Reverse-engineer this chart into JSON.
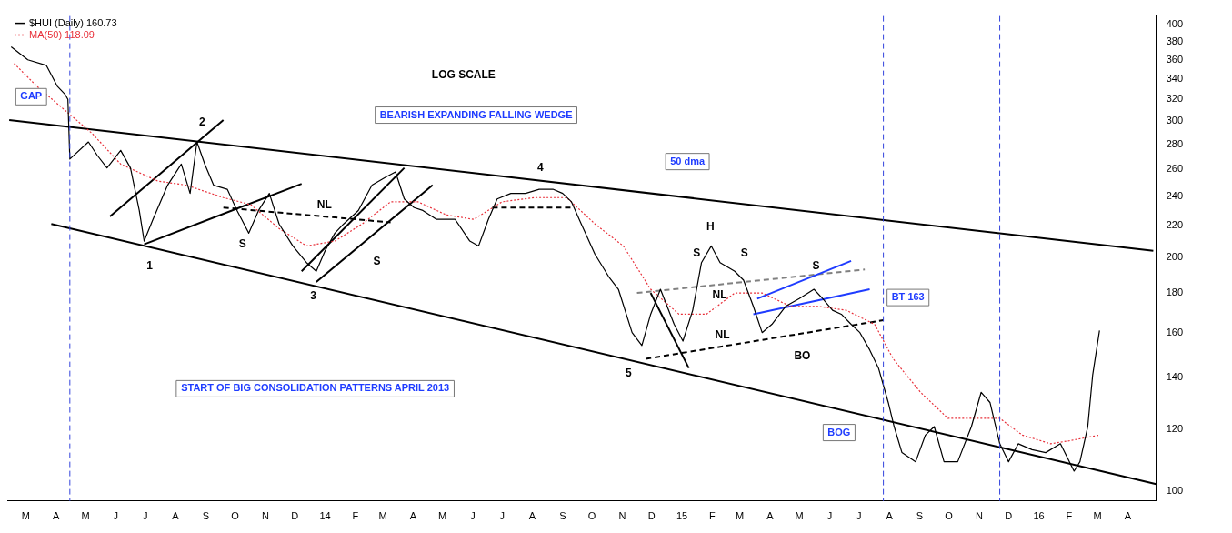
{
  "chart_data": {
    "type": "line",
    "subtitle": "LOG SCALE",
    "log": "y",
    "grid": false,
    "legend": "top left",
    "xlim": [
      "2013-02-10",
      "2016-04-30"
    ],
    "ylim": [
      97,
      410
    ],
    "yticks": [
      100,
      120,
      140,
      160,
      180,
      200,
      220,
      240,
      260,
      280,
      300,
      320,
      340,
      360,
      380,
      400
    ],
    "xticks": [
      {
        "value": "2013-03",
        "label": "M"
      },
      {
        "value": "2013-04",
        "label": "A"
      },
      {
        "value": "2013-05",
        "label": "M"
      },
      {
        "value": "2013-06",
        "label": "J"
      },
      {
        "value": "2013-07",
        "label": "J"
      },
      {
        "value": "2013-08",
        "label": "A"
      },
      {
        "value": "2013-09",
        "label": "S"
      },
      {
        "value": "2013-10",
        "label": "O"
      },
      {
        "value": "2013-11",
        "label": "N"
      },
      {
        "value": "2013-12",
        "label": "D"
      },
      {
        "value": "2014-01",
        "label": "14"
      },
      {
        "value": "2014-02",
        "label": "F"
      },
      {
        "value": "2014-03",
        "label": "M"
      },
      {
        "value": "2014-04",
        "label": "A"
      },
      {
        "value": "2014-05",
        "label": "M"
      },
      {
        "value": "2014-06",
        "label": "J"
      },
      {
        "value": "2014-07",
        "label": "J"
      },
      {
        "value": "2014-08",
        "label": "A"
      },
      {
        "value": "2014-09",
        "label": "S"
      },
      {
        "value": "2014-10",
        "label": "O"
      },
      {
        "value": "2014-11",
        "label": "N"
      },
      {
        "value": "2014-12",
        "label": "D"
      },
      {
        "value": "2015-01",
        "label": "15"
      },
      {
        "value": "2015-02",
        "label": "F"
      },
      {
        "value": "2015-03",
        "label": "M"
      },
      {
        "value": "2015-04",
        "label": "A"
      },
      {
        "value": "2015-05",
        "label": "M"
      },
      {
        "value": "2015-06",
        "label": "J"
      },
      {
        "value": "2015-07",
        "label": "J"
      },
      {
        "value": "2015-08",
        "label": "A"
      },
      {
        "value": "2015-09",
        "label": "S"
      },
      {
        "value": "2015-10",
        "label": "O"
      },
      {
        "value": "2015-11",
        "label": "N"
      },
      {
        "value": "2015-12",
        "label": "D"
      },
      {
        "value": "2016-01",
        "label": "16"
      },
      {
        "value": "2016-02",
        "label": "F"
      },
      {
        "value": "2016-03",
        "label": "M"
      },
      {
        "value": "2016-04",
        "label": "A"
      }
    ],
    "series": [
      {
        "name": "$HUI (Daily) 160.73",
        "color": "#000000",
        "x": [
          "2013-02-14",
          "2013-03-03",
          "2013-03-22",
          "2013-04-02",
          "2013-04-10",
          "2013-04-13",
          "2013-04-15",
          "2013-05-04",
          "2013-05-13",
          "2013-05-23",
          "2013-06-06",
          "2013-06-16",
          "2013-06-25",
          "2013-06-30",
          "2013-07-09",
          "2013-07-24",
          "2013-08-07",
          "2013-08-16",
          "2013-08-23",
          "2013-08-31",
          "2013-09-09",
          "2013-09-23",
          "2013-10-03",
          "2013-10-15",
          "2013-10-25",
          "2013-11-05",
          "2013-11-15",
          "2013-11-29",
          "2013-12-13",
          "2013-12-23",
          "2014-01-01",
          "2014-01-11",
          "2014-01-20",
          "2014-02-04",
          "2014-02-18",
          "2014-03-04",
          "2014-03-14",
          "2014-03-23",
          "2014-04-02",
          "2014-04-11",
          "2014-04-25",
          "2014-05-14",
          "2014-05-29",
          "2014-06-07",
          "2014-06-17",
          "2014-06-26",
          "2014-07-10",
          "2014-07-25",
          "2014-08-08",
          "2014-08-22",
          "2014-09-01",
          "2014-09-10",
          "2014-09-20",
          "2014-10-04",
          "2014-10-18",
          "2014-10-28",
          "2014-11-11",
          "2014-11-21",
          "2014-11-30",
          "2014-12-10",
          "2014-12-24",
          "2015-01-02",
          "2015-01-12",
          "2015-01-21",
          "2015-01-31",
          "2015-02-09",
          "2015-02-24",
          "2015-03-05",
          "2015-03-15",
          "2015-03-24",
          "2015-04-03",
          "2015-04-17",
          "2015-05-01",
          "2015-05-16",
          "2015-05-25",
          "2015-06-04",
          "2015-06-13",
          "2015-06-23",
          "2015-07-02",
          "2015-07-12",
          "2015-07-21",
          "2015-07-31",
          "2015-08-06",
          "2015-08-14",
          "2015-08-28",
          "2015-09-07",
          "2015-09-16",
          "2015-09-26",
          "2015-10-10",
          "2015-10-24",
          "2015-11-03",
          "2015-11-12",
          "2015-11-22",
          "2015-12-01",
          "2015-12-11",
          "2015-12-25",
          "2016-01-08",
          "2016-01-23",
          "2016-02-06",
          "2016-02-12",
          "2016-02-20",
          "2016-02-25",
          "2016-03-03"
        ],
        "values": [
          374,
          360,
          354,
          333,
          325,
          320,
          268,
          282,
          271,
          261,
          275,
          261,
          230,
          210,
          224,
          248,
          264,
          242,
          282,
          264,
          248,
          245,
          230,
          215,
          230,
          242,
          221,
          207,
          197,
          192,
          204,
          215,
          221,
          230,
          248,
          254,
          258,
          238,
          232,
          230,
          224,
          224,
          210,
          207,
          224,
          238,
          242,
          242,
          245,
          245,
          242,
          236,
          221,
          202,
          189,
          182,
          160,
          154,
          169,
          182,
          164,
          156,
          171,
          197,
          207,
          197,
          192,
          187,
          173,
          160,
          164,
          173,
          177,
          182,
          177,
          171,
          169,
          164,
          160,
          152,
          144,
          130,
          121,
          112,
          109,
          118,
          121,
          109,
          109,
          121,
          134,
          130,
          115,
          109,
          115,
          113,
          112,
          115,
          106,
          109,
          121,
          141,
          161
        ]
      },
      {
        "name": "MA(50) 118.09",
        "color": "#e8303a",
        "line_style": "dotted",
        "x": [
          "2013-02-17",
          "2013-03-12",
          "2013-05-08",
          "2013-06-06",
          "2013-07-14",
          "2013-08-12",
          "2013-09-19",
          "2013-10-17",
          "2013-11-15",
          "2013-12-13",
          "2014-01-11",
          "2014-02-08",
          "2014-03-09",
          "2014-04-06",
          "2014-05-05",
          "2014-06-02",
          "2014-07-01",
          "2014-08-03",
          "2014-09-05",
          "2014-10-04",
          "2014-11-02",
          "2014-11-30",
          "2014-12-29",
          "2015-01-26",
          "2015-02-24",
          "2015-03-24",
          "2015-04-22",
          "2015-05-20",
          "2015-06-18",
          "2015-07-17",
          "2015-08-05",
          "2015-09-02",
          "2015-09-30",
          "2015-10-24",
          "2015-11-22",
          "2015-12-15",
          "2016-01-13",
          "2016-02-01",
          "2016-03-03"
        ],
        "values": [
          356,
          333,
          289,
          264,
          251,
          248,
          239,
          234,
          218,
          207,
          210,
          221,
          236,
          236,
          227,
          224,
          236,
          239,
          239,
          221,
          207,
          182,
          169,
          169,
          180,
          180,
          173,
          173,
          171,
          164,
          148,
          134,
          124,
          124,
          124,
          118,
          115,
          116,
          118
        ]
      },
      {
        "type": "line",
        "color": "#000000",
        "x": [
          "2013-02-12",
          "2016-04-27"
        ],
        "values": [
          301,
          204
        ]
      },
      {
        "type": "line",
        "color": "#000000",
        "x": [
          "2013-03-27",
          "2016-04-30"
        ],
        "values": [
          221,
          102
        ]
      },
      {
        "type": "line",
        "color": "#000000",
        "x": [
          "2013-05-26",
          "2013-09-19"
        ],
        "values": [
          226,
          301
        ]
      },
      {
        "type": "line",
        "color": "#000000",
        "x": [
          "2013-06-30",
          "2013-12-08"
        ],
        "values": [
          208,
          249
        ]
      },
      {
        "type": "line",
        "color": "#000000",
        "x": [
          "2013-12-08",
          "2014-03-23"
        ],
        "values": [
          192,
          261
        ]
      },
      {
        "type": "line",
        "color": "#000000",
        "x": [
          "2013-12-23",
          "2014-04-21"
        ],
        "values": [
          186,
          248
        ]
      },
      {
        "type": "line",
        "color": "#000000",
        "x": [
          "2014-11-30",
          "2015-01-08"
        ],
        "values": [
          180,
          144
        ]
      },
      {
        "type": "line",
        "color": "#1f3cff",
        "x": [
          "2015-03-15",
          "2015-07-12"
        ],
        "values": [
          169,
          182
        ]
      },
      {
        "type": "line",
        "color": "#1f3cff",
        "x": [
          "2015-03-19",
          "2015-06-23"
        ],
        "values": [
          177,
          198
        ]
      },
      {
        "type": "line",
        "color": "#000000",
        "line_style": "dashed",
        "x": [
          "2013-09-19",
          "2014-03-09"
        ],
        "values": [
          232,
          222
        ]
      },
      {
        "type": "line",
        "color": "#000000",
        "line_style": "dashed",
        "x": [
          "2014-06-21",
          "2014-09-10"
        ],
        "values": [
          232,
          232
        ]
      },
      {
        "type": "line",
        "color": "#808080",
        "line_style": "dashed",
        "x": [
          "2014-11-16",
          "2015-07-07"
        ],
        "values": [
          180,
          193
        ]
      },
      {
        "type": "line",
        "color": "#000000",
        "line_style": "dashed",
        "x": [
          "2014-11-25",
          "2015-07-26"
        ],
        "values": [
          148,
          166
        ]
      }
    ],
    "ref_lines": [
      {
        "axis": "x",
        "value": "2013-04-15",
        "color": "#3344dd",
        "line_style": "dashed"
      },
      {
        "axis": "x",
        "value": "2015-07-26",
        "color": "#3344dd",
        "line_style": "dashed"
      },
      {
        "axis": "x",
        "value": "2015-11-22",
        "color": "#3344dd",
        "line_style": "dashed"
      }
    ],
    "annotations": [
      "GAP",
      "2",
      "1",
      "3",
      "4",
      "5",
      "S",
      "S",
      "H",
      "S",
      "S",
      "S",
      "NL",
      "NL",
      "NL",
      "BEARISH EXPANDING FALLING WEDGE",
      "50 dma",
      "BT 163",
      "BO",
      "BOG",
      "START OF BIG CONSOLIDATION PATTERNS APRIL 2013"
    ]
  }
}
